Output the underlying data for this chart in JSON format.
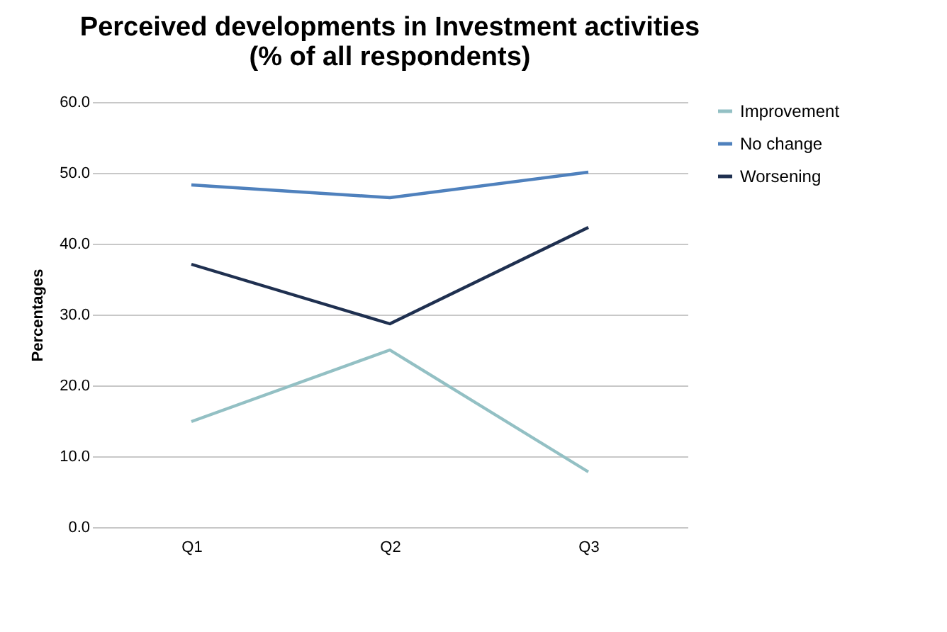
{
  "chart_data": {
    "type": "line",
    "title": [
      "Perceived developments in Investment activities",
      "(% of all respondents)"
    ],
    "ylabel": "Percentages",
    "categories": [
      "Q1",
      "Q2",
      "Q3"
    ],
    "series": [
      {
        "name": "Improvement",
        "color": "#93c0c4",
        "values": [
          14.9,
          25.0,
          7.8
        ]
      },
      {
        "name": "No change",
        "color": "#4f81bd",
        "values": [
          48.3,
          46.5,
          50.1
        ]
      },
      {
        "name": "Worsening",
        "color": "#1f3050",
        "values": [
          37.1,
          28.7,
          42.3
        ]
      }
    ],
    "ylim": [
      0,
      60
    ],
    "yticks": [
      {
        "value": 0,
        "label": "0.0"
      },
      {
        "value": 10,
        "label": "10.0"
      },
      {
        "value": 20,
        "label": "20.0"
      },
      {
        "value": 30,
        "label": "30.0"
      },
      {
        "value": 40,
        "label": "40.0"
      },
      {
        "value": 50,
        "label": "50.0"
      },
      {
        "value": 60,
        "label": "60.0"
      }
    ],
    "grid": "y",
    "legend": "right",
    "marker": "none",
    "line_style": "solid"
  }
}
